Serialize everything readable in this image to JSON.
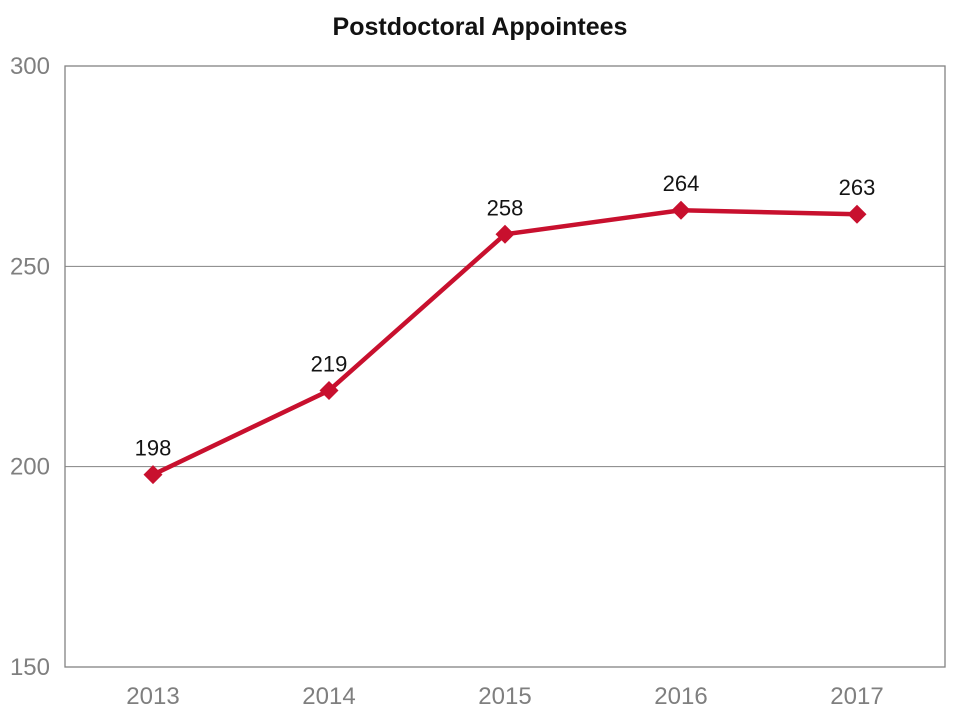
{
  "title": "Postdoctoral Appointees",
  "colors": {
    "series": "#C8102E",
    "axis": "#828282",
    "tick_text": "#7f7f7f",
    "label_text": "#141414"
  },
  "chart_data": {
    "type": "line",
    "title": "Postdoctoral Appointees",
    "categories": [
      "2013",
      "2014",
      "2015",
      "2016",
      "2017"
    ],
    "series": [
      {
        "name": "Postdoctoral Appointees",
        "values": [
          198,
          219,
          258,
          264,
          263
        ]
      }
    ],
    "data_labels": [
      "198",
      "219",
      "258",
      "264",
      "263"
    ],
    "xlabel": "",
    "ylabel": "",
    "ylim": [
      150,
      300
    ],
    "yticks": [
      150,
      200,
      250,
      300
    ],
    "grid": "horizontal-major",
    "legend": "none",
    "marker": "diamond",
    "plot_border": "full-box"
  }
}
